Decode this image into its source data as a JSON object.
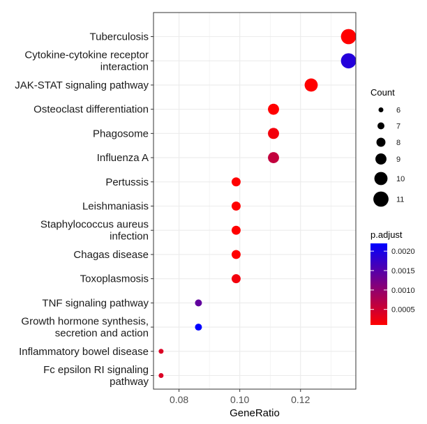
{
  "chart_data": {
    "type": "scatter",
    "xlabel": "GeneRatio",
    "ylabel": "",
    "title": "",
    "xlim": [
      0.0716,
      0.1382
    ],
    "x_ticks": [
      0.08,
      0.1,
      0.12
    ],
    "x_tick_labels": [
      "0.08",
      "0.10",
      "0.12"
    ],
    "grid": true,
    "legend_position": "right",
    "points": [
      {
        "term": [
          "Tuberculosis"
        ],
        "x": 0.1358,
        "count": 11,
        "p_adjust": 0.0001
      },
      {
        "term": [
          "Cytokine-cytokine receptor",
          "interaction"
        ],
        "x": 0.1358,
        "count": 11,
        "p_adjust": 0.0019
      },
      {
        "term": [
          "JAK-STAT signaling pathway"
        ],
        "x": 0.1235,
        "count": 10,
        "p_adjust": 0.0001
      },
      {
        "term": [
          "Osteoclast differentiation"
        ],
        "x": 0.1111,
        "count": 9,
        "p_adjust": 0.0001
      },
      {
        "term": [
          "Phagosome"
        ],
        "x": 0.1111,
        "count": 9,
        "p_adjust": 0.0002
      },
      {
        "term": [
          "Influenza A"
        ],
        "x": 0.1111,
        "count": 9,
        "p_adjust": 0.0006
      },
      {
        "term": [
          "Pertussis"
        ],
        "x": 0.0988,
        "count": 8,
        "p_adjust": 0.0001
      },
      {
        "term": [
          "Leishmaniasis"
        ],
        "x": 0.0988,
        "count": 8,
        "p_adjust": 0.0001
      },
      {
        "term": [
          "Staphylococcus aureus",
          "infection"
        ],
        "x": 0.0988,
        "count": 8,
        "p_adjust": 0.0001
      },
      {
        "term": [
          "Chagas disease"
        ],
        "x": 0.0988,
        "count": 8,
        "p_adjust": 0.0001
      },
      {
        "term": [
          "Toxoplasmosis"
        ],
        "x": 0.0988,
        "count": 8,
        "p_adjust": 0.0002
      },
      {
        "term": [
          "TNF signaling pathway"
        ],
        "x": 0.0864,
        "count": 7,
        "p_adjust": 0.0014
      },
      {
        "term": [
          "Growth hormone synthesis,",
          "secretion and action"
        ],
        "x": 0.0864,
        "count": 7,
        "p_adjust": 0.0022
      },
      {
        "term": [
          "Inflammatory bowel disease"
        ],
        "x": 0.0741,
        "count": 6,
        "p_adjust": 0.0004
      },
      {
        "term": [
          "Fc epsilon RI signaling",
          "pathway"
        ],
        "x": 0.0741,
        "count": 6,
        "p_adjust": 0.0004
      }
    ],
    "size_legend": {
      "title": "Count",
      "values": [
        6,
        7,
        8,
        9,
        10,
        11
      ],
      "labels": [
        "6",
        "7",
        "8",
        "9",
        "10",
        "11"
      ]
    },
    "color_legend": {
      "title": "p.adjust",
      "low_color": "#ff0000",
      "high_color": "#0000ff",
      "min": 0.0001,
      "max": 0.0022,
      "ticks": [
        0.0005,
        0.001,
        0.0015,
        0.002
      ],
      "tick_labels": [
        "0.0005",
        "0.0010",
        "0.0015",
        "0.0020"
      ]
    }
  }
}
